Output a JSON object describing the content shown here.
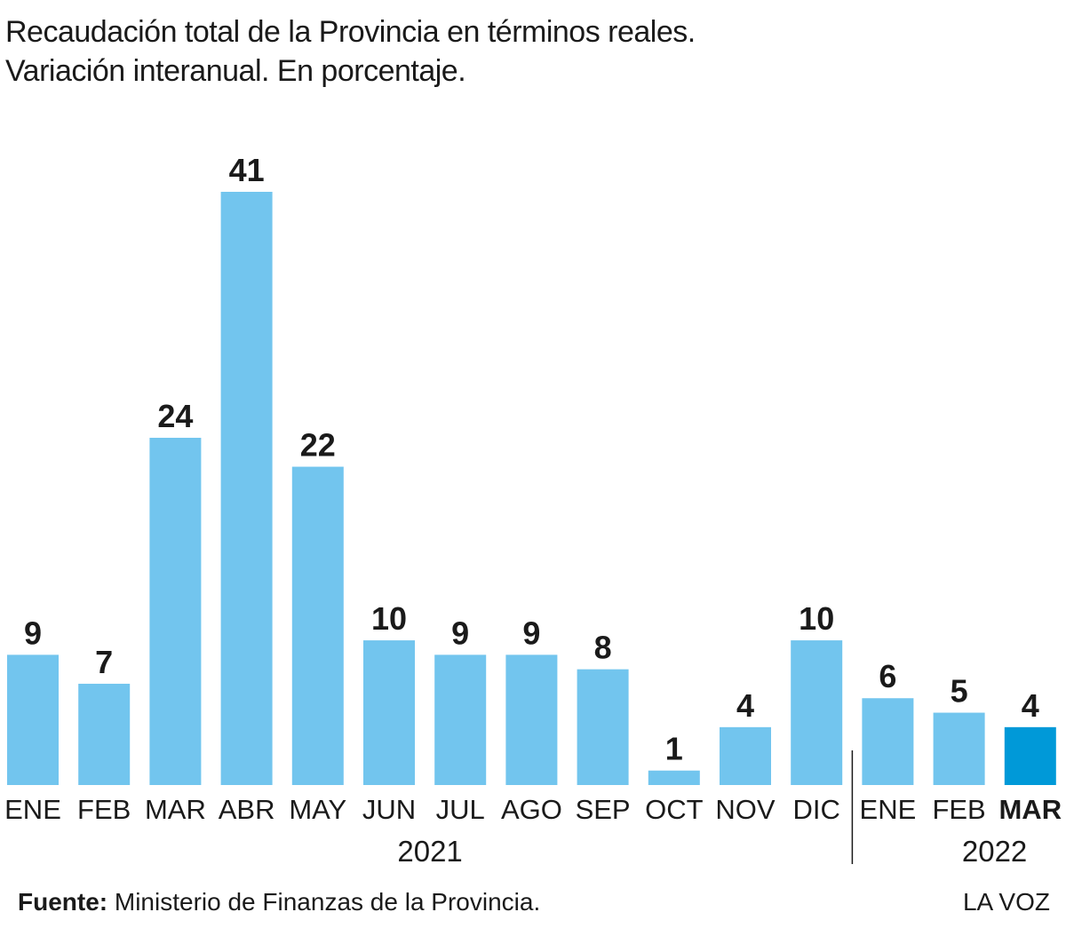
{
  "header": {
    "title": "Recaudación total de la Provincia en términos reales.",
    "subtitle": "Variación interanual. En porcentaje."
  },
  "footer": {
    "source_label": "Fuente:",
    "source_text": "Ministerio de Finanzas de la Provincia.",
    "brand": "LA VOZ"
  },
  "chart_data": {
    "type": "bar",
    "title": "Recaudación total de la Provincia en términos reales.",
    "subtitle": "Variación interanual. En porcentaje.",
    "xlabel": "",
    "ylabel": "",
    "ylim": [
      0,
      41
    ],
    "grid": false,
    "categories": [
      "ENE",
      "FEB",
      "MAR",
      "ABR",
      "MAY",
      "JUN",
      "JUL",
      "AGO",
      "SEP",
      "OCT",
      "NOV",
      "DIC",
      "ENE",
      "FEB",
      "MAR"
    ],
    "values": [
      9,
      7,
      24,
      41,
      22,
      10,
      9,
      9,
      8,
      1,
      4,
      10,
      6,
      5,
      4
    ],
    "years": [
      {
        "label": "2021",
        "from": 0,
        "to": 11
      },
      {
        "label": "2022",
        "from": 12,
        "to": 14
      }
    ],
    "highlight_index": 14,
    "colors": {
      "bar": "#72c5ee",
      "highlight": "#0099d8",
      "text": "#1a1a1a"
    }
  }
}
